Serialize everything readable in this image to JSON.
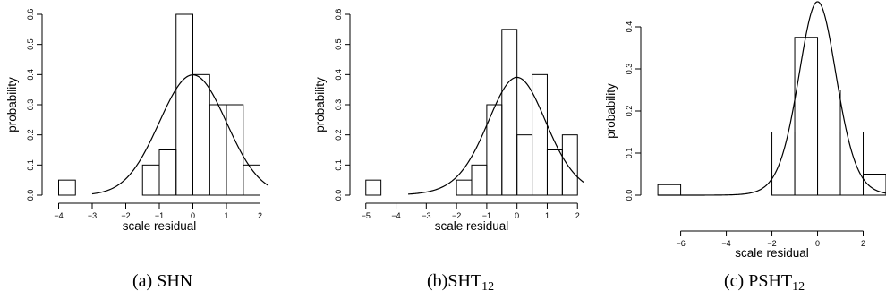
{
  "chart_data": [
    {
      "type": "bar",
      "caption": "(a) SHN",
      "xlabel": "scale residual",
      "ylabel": "probability",
      "xlim": [
        -4.2,
        2.2
      ],
      "ylim": [
        0,
        0.6
      ],
      "x_ticks": [
        -4,
        -3,
        -2,
        -1,
        0,
        1,
        2
      ],
      "x_tick_labels": [
        "−4",
        "−3",
        "−2",
        "−1",
        "0",
        "1",
        "2"
      ],
      "y_ticks": [
        0.0,
        0.1,
        0.2,
        0.3,
        0.4,
        0.5,
        0.6
      ],
      "y_tick_labels": [
        "0.0",
        "0.1",
        "0.2",
        "0.3",
        "0.4",
        "0.5",
        "0.6"
      ],
      "bins": [
        {
          "x0": -4.0,
          "x1": -3.5,
          "value": 0.05
        },
        {
          "x0": -1.5,
          "x1": -1.0,
          "value": 0.1
        },
        {
          "x0": -1.0,
          "x1": -0.5,
          "value": 0.15
        },
        {
          "x0": -0.5,
          "x1": 0.0,
          "value": 0.6
        },
        {
          "x0": 0.0,
          "x1": 0.5,
          "value": 0.4
        },
        {
          "x0": 0.5,
          "x1": 1.0,
          "value": 0.3
        },
        {
          "x0": 1.0,
          "x1": 1.5,
          "value": 0.3
        },
        {
          "x0": 1.5,
          "x1": 2.0,
          "value": 0.1
        }
      ],
      "density_curve": {
        "type": "normal",
        "mean": 0,
        "sd": 1,
        "x_range": [
          -3.0,
          2.25
        ]
      }
    },
    {
      "type": "bar",
      "caption_prefix": "(b)SHT",
      "caption_sub": "12",
      "xlabel": "scale residual",
      "ylabel": "probability",
      "xlim": [
        -5.2,
        2.2
      ],
      "ylim": [
        0,
        0.6
      ],
      "x_ticks": [
        -5,
        -4,
        -3,
        -2,
        -1,
        0,
        1,
        2
      ],
      "x_tick_labels": [
        "−5",
        "−4",
        "−3",
        "−2",
        "−1",
        "0",
        "1",
        "2"
      ],
      "y_ticks": [
        0.0,
        0.1,
        0.2,
        0.3,
        0.4,
        0.5,
        0.6
      ],
      "y_tick_labels": [
        "0.0",
        "0.1",
        "0.2",
        "0.3",
        "0.4",
        "0.5",
        "0.6"
      ],
      "bins": [
        {
          "x0": -5.0,
          "x1": -4.5,
          "value": 0.05
        },
        {
          "x0": -2.0,
          "x1": -1.5,
          "value": 0.05
        },
        {
          "x0": -1.5,
          "x1": -1.0,
          "value": 0.1
        },
        {
          "x0": -1.0,
          "x1": -0.5,
          "value": 0.3
        },
        {
          "x0": -0.5,
          "x1": 0.0,
          "value": 0.55
        },
        {
          "x0": 0.0,
          "x1": 0.5,
          "value": 0.2
        },
        {
          "x0": 0.5,
          "x1": 1.0,
          "value": 0.4
        },
        {
          "x0": 1.0,
          "x1": 1.5,
          "value": 0.15
        },
        {
          "x0": 1.5,
          "x1": 2.0,
          "value": 0.2
        }
      ],
      "density_curve": {
        "type": "t",
        "df": 12,
        "x_range": [
          -3.6,
          2.2
        ]
      }
    },
    {
      "type": "bar",
      "caption_prefix": "(c) PSHT",
      "caption_sub": "12",
      "xlabel": "scale residual",
      "ylabel": "probability",
      "xlim": [
        -7.2,
        3.0
      ],
      "ylim": [
        0,
        0.4
      ],
      "x_ticks": [
        -6,
        -4,
        -2,
        0,
        2
      ],
      "x_tick_labels": [
        "−6",
        "−4",
        "−2",
        "0",
        "2"
      ],
      "y_ticks": [
        0.0,
        0.1,
        0.2,
        0.3,
        0.4
      ],
      "y_tick_labels": [
        "0.0",
        "0.1",
        "0.2",
        "0.3",
        "0.4"
      ],
      "bins": [
        {
          "x0": -7.0,
          "x1": -6.0,
          "value": 0.025
        },
        {
          "x0": -2.0,
          "x1": -1.0,
          "value": 0.15
        },
        {
          "x0": -1.0,
          "x1": 0.0,
          "value": 0.375
        },
        {
          "x0": 0.0,
          "x1": 1.0,
          "value": 0.25
        },
        {
          "x0": 1.0,
          "x1": 2.0,
          "value": 0.15
        },
        {
          "x0": 2.0,
          "x1": 3.0,
          "value": 0.05
        }
      ],
      "density_curve": {
        "type": "t",
        "df": 12,
        "scale": 0.85,
        "x_range": [
          -7.0,
          3.0
        ]
      }
    }
  ]
}
